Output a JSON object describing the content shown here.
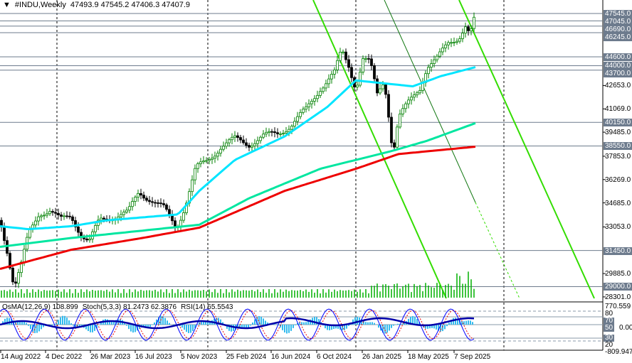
{
  "header": {
    "symbol": "#INDU,Weekly",
    "ohlc": "47493.9 47545.2 47406.3 47407.9"
  },
  "indicators": {
    "osma": "OsMA(12,26,9) 108.899",
    "stoch": "Stoch(5,3,3) 81.2473 62.3876",
    "rsi": "RSI(14) 65.5543"
  },
  "price_axis": {
    "levels": [
      "47545.0",
      "47045.0",
      "46690.0",
      "46245.0",
      "44600.0",
      "44000.0",
      "43700.0",
      "40150.0",
      "38550.0",
      "31450.0",
      "29000.0"
    ],
    "ticks": [
      "42653.0",
      "41069.0",
      "39485.0",
      "37853.0",
      "36269.0",
      "34685.0",
      "33053.0",
      "29885.0",
      "28301.0"
    ]
  },
  "indicator_axis": {
    "max": "770.559",
    "min": "-809.947",
    "l70": "70",
    "l50": "50",
    "l30": "30",
    "l80": "80",
    "l20": "20",
    "zero": "0.00"
  },
  "time_axis": [
    "14 Aug 2022",
    "4 Dec 2022",
    "26 Mar 2023",
    "16 Jul 2023",
    "5 Nov 2023",
    "25 Feb 2024",
    "16 Jun 2024",
    "6 Oct 2024",
    "26 Jan 2025",
    "18 May 2025",
    "7 Sep 2025"
  ],
  "colors": {
    "bull": "#008000",
    "bear": "#000000",
    "ma_fast": "#00e5ff",
    "ma_mid": "#00e6a0",
    "ma_slow": "#ee0000",
    "channel": "#33dd00",
    "level": "#6d7b8d"
  },
  "chart_data": {
    "type": "candlestick",
    "title": "#INDU,Weekly",
    "close_path": [
      [
        0,
        33500
      ],
      [
        10,
        31500
      ],
      [
        20,
        29000
      ],
      [
        30,
        30500
      ],
      [
        40,
        32500
      ],
      [
        55,
        34000
      ],
      [
        70,
        34200
      ],
      [
        85,
        33500
      ],
      [
        100,
        33800
      ],
      [
        115,
        32500
      ],
      [
        125,
        32000
      ],
      [
        140,
        33500
      ],
      [
        160,
        33800
      ],
      [
        180,
        34000
      ],
      [
        195,
        35400
      ],
      [
        210,
        35000
      ],
      [
        230,
        34300
      ],
      [
        248,
        33000
      ],
      [
        260,
        34500
      ],
      [
        275,
        37000
      ],
      [
        290,
        37500
      ],
      [
        310,
        38500
      ],
      [
        330,
        39000
      ],
      [
        350,
        38700
      ],
      [
        370,
        39200
      ],
      [
        390,
        39400
      ],
      [
        410,
        40000
      ],
      [
        430,
        41000
      ],
      [
        450,
        42500
      ],
      [
        470,
        43500
      ],
      [
        480,
        45000
      ],
      [
        490,
        44000
      ],
      [
        500,
        42500
      ],
      [
        510,
        44500
      ],
      [
        520,
        44200
      ],
      [
        530,
        42000
      ],
      [
        540,
        43000
      ],
      [
        548,
        40000
      ],
      [
        552,
        38000
      ],
      [
        560,
        40500
      ],
      [
        575,
        41500
      ],
      [
        590,
        42500
      ],
      [
        600,
        44000
      ],
      [
        615,
        44500
      ],
      [
        630,
        45500
      ],
      [
        645,
        46000
      ],
      [
        655,
        46800
      ],
      [
        660,
        46000
      ],
      [
        668,
        47408
      ]
    ],
    "ma_fast": [
      [
        0,
        33100
      ],
      [
        40,
        32900
      ],
      [
        100,
        33100
      ],
      [
        150,
        33500
      ],
      [
        200,
        33700
      ],
      [
        250,
        33900
      ],
      [
        280,
        35500
      ],
      [
        330,
        37600
      ],
      [
        400,
        39200
      ],
      [
        460,
        41200
      ],
      [
        500,
        43000
      ],
      [
        540,
        42800
      ],
      [
        580,
        42600
      ],
      [
        620,
        43300
      ],
      [
        668,
        43900
      ]
    ],
    "ma_mid": [
      [
        0,
        31700
      ],
      [
        100,
        32300
      ],
      [
        200,
        32800
      ],
      [
        280,
        33200
      ],
      [
        350,
        35000
      ],
      [
        450,
        37000
      ],
      [
        550,
        38200
      ],
      [
        600,
        38900
      ],
      [
        668,
        40100
      ]
    ],
    "ma_slow": [
      [
        0,
        30200
      ],
      [
        100,
        31500
      ],
      [
        200,
        32300
      ],
      [
        280,
        33000
      ],
      [
        400,
        35500
      ],
      [
        500,
        37000
      ],
      [
        560,
        38000
      ],
      [
        668,
        38500
      ]
    ],
    "ylim": [
      28301,
      47545
    ]
  }
}
